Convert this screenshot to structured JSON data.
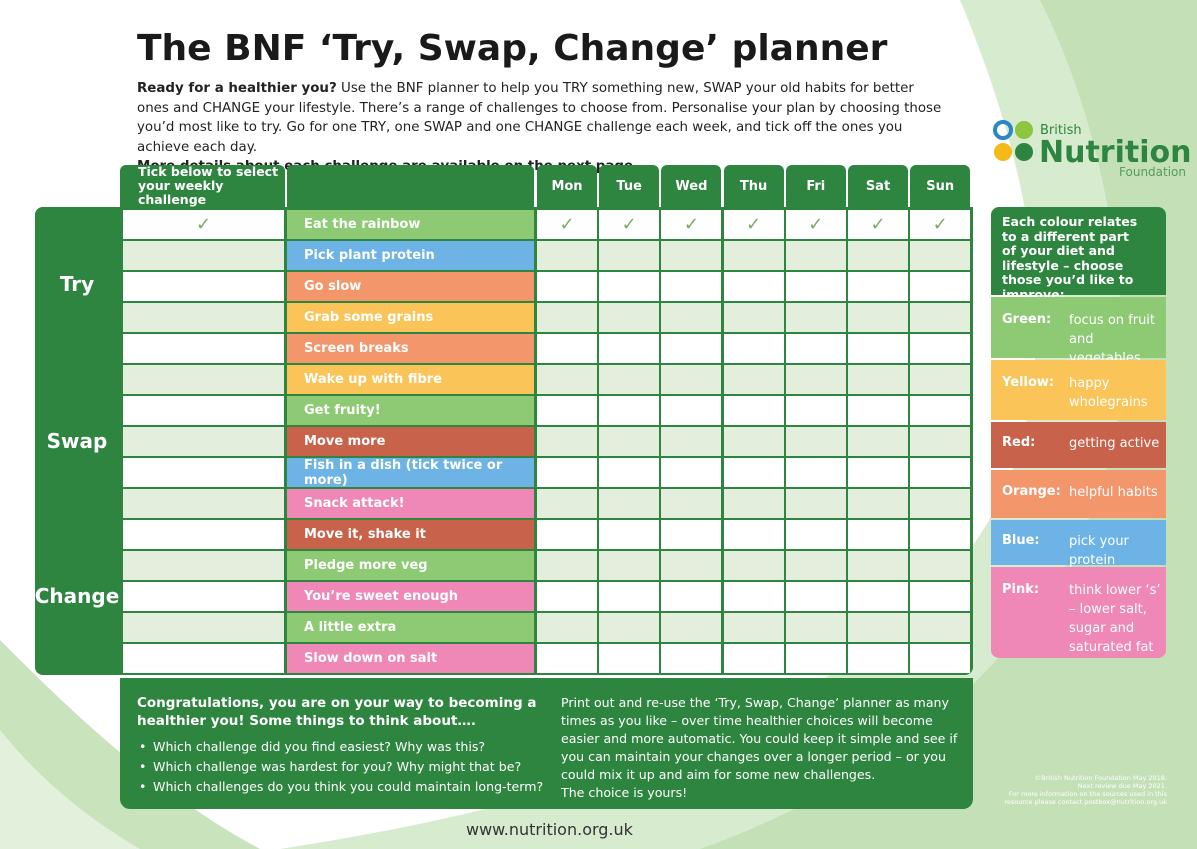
{
  "title": "The BNF ‘Try, Swap, Change’ planner",
  "intro": {
    "lead": "Ready for a healthier you?",
    "text": "Use the BNF planner to help you TRY something new, SWAP your old habits for better ones and CHANGE your lifestyle. There’s a range of challenges to choose from. Personalise your plan by choosing those you’d most like to try. Go for one TRY, one SWAP and one CHANGE challenge each week, and tick off the ones you achieve each day.",
    "more": "More details about each challenge are available on the next page."
  },
  "logo": {
    "small": "British",
    "big": "Nutrition",
    "sub": "Foundation"
  },
  "table": {
    "select_header": "Tick below to select your weekly challenge",
    "days": [
      "Mon",
      "Tue",
      "Wed",
      "Thu",
      "Fri",
      "Sat",
      "Sun"
    ],
    "tick": "✓",
    "groups": [
      {
        "label": "Try",
        "rows": [
          {
            "name": "Eat the rainbow",
            "color": "#8dca73",
            "selected": true,
            "days": [
              true,
              true,
              true,
              true,
              true,
              true,
              true
            ]
          },
          {
            "name": "Pick plant protein",
            "color": "#6db3e5",
            "selected": false,
            "days": [
              false,
              false,
              false,
              false,
              false,
              false,
              false
            ]
          },
          {
            "name": "Go slow",
            "color": "#f4966c",
            "selected": false,
            "days": [
              false,
              false,
              false,
              false,
              false,
              false,
              false
            ]
          },
          {
            "name": "Grab some grains",
            "color": "#fbc458",
            "selected": false,
            "days": [
              false,
              false,
              false,
              false,
              false,
              false,
              false
            ]
          },
          {
            "name": "Screen breaks",
            "color": "#f4966c",
            "selected": false,
            "days": [
              false,
              false,
              false,
              false,
              false,
              false,
              false
            ]
          }
        ]
      },
      {
        "label": "Swap",
        "rows": [
          {
            "name": "Wake up with fibre",
            "color": "#fbc458",
            "selected": false,
            "days": [
              false,
              false,
              false,
              false,
              false,
              false,
              false
            ]
          },
          {
            "name": "Get fruity!",
            "color": "#8dca73",
            "selected": false,
            "days": [
              false,
              false,
              false,
              false,
              false,
              false,
              false
            ]
          },
          {
            "name": "Move more",
            "color": "#c8624b",
            "selected": false,
            "days": [
              false,
              false,
              false,
              false,
              false,
              false,
              false
            ]
          },
          {
            "name": "Fish in a dish (tick twice or more)",
            "color": "#6db3e5",
            "selected": false,
            "days": [
              false,
              false,
              false,
              false,
              false,
              false,
              false
            ]
          },
          {
            "name": "Snack attack!",
            "color": "#ef88b7",
            "selected": false,
            "days": [
              false,
              false,
              false,
              false,
              false,
              false,
              false
            ]
          }
        ]
      },
      {
        "label": "Change",
        "rows": [
          {
            "name": "Move it, shake it",
            "color": "#c8624b",
            "selected": false,
            "days": [
              false,
              false,
              false,
              false,
              false,
              false,
              false
            ]
          },
          {
            "name": "Pledge more veg",
            "color": "#8dca73",
            "selected": false,
            "days": [
              false,
              false,
              false,
              false,
              false,
              false,
              false
            ]
          },
          {
            "name": "You’re sweet enough",
            "color": "#ef88b7",
            "selected": false,
            "days": [
              false,
              false,
              false,
              false,
              false,
              false,
              false
            ]
          },
          {
            "name": "A little extra",
            "color": "#8dca73",
            "selected": false,
            "days": [
              false,
              false,
              false,
              false,
              false,
              false,
              false
            ]
          },
          {
            "name": "Slow down on salt",
            "color": "#ef88b7",
            "selected": false,
            "days": [
              false,
              false,
              false,
              false,
              false,
              false,
              false
            ]
          }
        ]
      }
    ]
  },
  "legend": {
    "header": "Each colour relates to a different part of your diet and lifestyle – choose those you’d like to improve:",
    "items": [
      {
        "label": "Green:",
        "text": "focus on fruit and vegetables",
        "color": "#8dca73"
      },
      {
        "label": "Yellow:",
        "text": "happy wholegrains",
        "color": "#fbc458"
      },
      {
        "label": "Red:",
        "text": "getting active",
        "color": "#c8624b"
      },
      {
        "label": "Orange:",
        "text": "helpful habits",
        "color": "#f4966c"
      },
      {
        "label": "Blue:",
        "text": "pick your protein",
        "color": "#6db3e5"
      },
      {
        "label": "Pink:",
        "text": "think lower ‘s’ – lower salt, sugar and saturated fat",
        "color": "#ef88b7"
      }
    ]
  },
  "notes": {
    "title": "Congratulations, you are on your way to becoming a healthier you! Some things to think about….",
    "bullets": [
      "Which challenge did you find easiest? Why was this?",
      "Which challenge was hardest for you? Why might that be?",
      "Which challenges do you think you could maintain long-term?"
    ],
    "text": "Print out and re-use the ‘Try, Swap, Change’ planner as many times as you like – over time healthier choices will become easier and more automatic. You could keep it simple and see if you can maintain your changes over a longer period – or you could mix it up and aim for some new challenges.",
    "end": "The choice is yours!"
  },
  "footer": {
    "url": "www.nutrition.org.uk",
    "copyright": [
      "©British Nutrition Foundation May 2018.",
      "Next review due May 2021.",
      "For more information on the sources used in this",
      "resource please contact postbox@nutrition.org.uk"
    ]
  }
}
